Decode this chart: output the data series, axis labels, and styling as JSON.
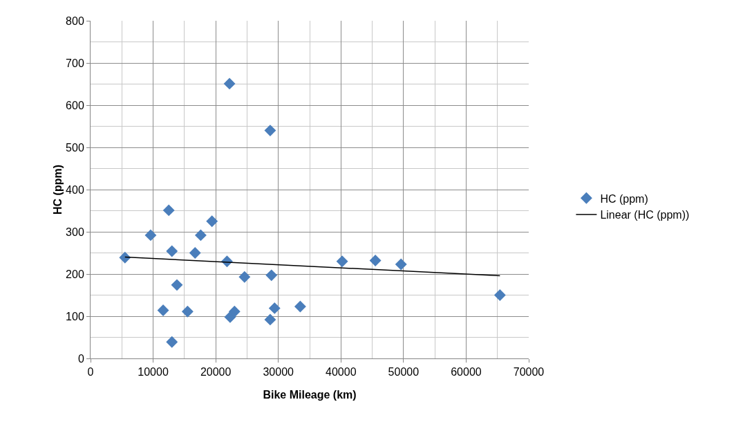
{
  "chart_data": {
    "type": "scatter",
    "xlabel": "Bike Mileage (km)",
    "ylabel": "HC (ppm)",
    "xlim": [
      0,
      70000
    ],
    "xticks": [
      0,
      10000,
      20000,
      30000,
      40000,
      50000,
      60000,
      70000
    ],
    "ylim": [
      0,
      800
    ],
    "yticks": [
      0,
      100,
      200,
      300,
      400,
      500,
      600,
      700,
      800
    ],
    "grid": true,
    "legend": "right",
    "marker": "diamond",
    "series": [
      {
        "name": "HC (ppm)",
        "color": "#4a7ebb",
        "x": [
          5500,
          9600,
          12500,
          13000,
          13800,
          13000,
          11600,
          15500,
          16700,
          17600,
          19400,
          21800,
          24600,
          22300,
          23000,
          28900,
          29400,
          28700,
          33500,
          22200,
          28700,
          40200,
          45500,
          49600,
          65400
        ],
        "values": [
          239,
          292,
          351,
          254,
          174,
          39,
          114,
          111,
          250,
          292,
          325,
          230,
          193,
          98,
          111,
          197,
          119,
          92,
          123,
          651,
          540,
          230,
          232,
          223,
          150
        ]
      },
      {
        "name": "Linear (HC (ppm))",
        "type": "line",
        "color": "#000000",
        "marker": "none",
        "line_style": "solid",
        "x": [
          5500,
          65400
        ],
        "values": [
          240,
          196
        ]
      }
    ]
  }
}
